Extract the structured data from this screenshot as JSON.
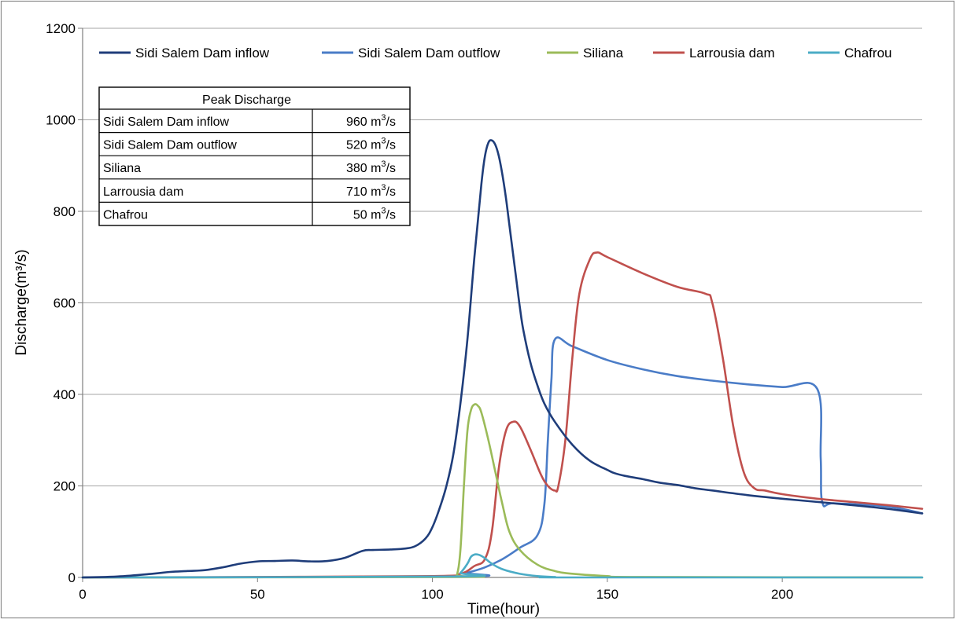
{
  "chart_data": {
    "type": "line",
    "xlabel": "Time(hour)",
    "ylabel": "Discharge(m³/s)",
    "xlim": [
      0,
      240
    ],
    "ylim": [
      0,
      1200
    ],
    "xticks": [
      0,
      50,
      100,
      150,
      200
    ],
    "yticks": [
      0,
      200,
      400,
      600,
      800,
      1000,
      1200
    ],
    "grid": "horizontal",
    "legend_position": "top",
    "series": [
      {
        "name": "Sidi Salem Dam inflow",
        "color": "#1f3d7a",
        "x": [
          0,
          10,
          20,
          25,
          30,
          35,
          40,
          45,
          50,
          55,
          60,
          65,
          70,
          75,
          80,
          83,
          88,
          92,
          95,
          98,
          100,
          102,
          104,
          106,
          108,
          110,
          112,
          114,
          115,
          116,
          117,
          118,
          119,
          120,
          121,
          122,
          123,
          124,
          125,
          126,
          128,
          130,
          132,
          135,
          140,
          145,
          150,
          152,
          155,
          160,
          165,
          170,
          175,
          180,
          190,
          200,
          210,
          220,
          230,
          240
        ],
        "y": [
          0,
          2,
          8,
          12,
          14,
          16,
          22,
          30,
          35,
          36,
          37,
          35,
          36,
          43,
          58,
          60,
          61,
          63,
          68,
          85,
          110,
          150,
          200,
          270,
          380,
          520,
          700,
          860,
          920,
          950,
          955,
          945,
          920,
          880,
          830,
          770,
          710,
          650,
          590,
          540,
          470,
          420,
          380,
          340,
          290,
          255,
          235,
          228,
          222,
          215,
          207,
          202,
          195,
          190,
          180,
          172,
          165,
          158,
          150,
          140
        ]
      },
      {
        "name": "Sidi Salem Dam outflow",
        "color": "#4a7cc7",
        "x": [
          0,
          107,
          110,
          115,
          120,
          125,
          130,
          132,
          133,
          134,
          135,
          140,
          150,
          160,
          170,
          180,
          190,
          200,
          210,
          211,
          211.5,
          215,
          230,
          240
        ],
        "y": [
          0,
          2,
          10,
          22,
          40,
          65,
          92,
          160,
          300,
          430,
          520,
          505,
          475,
          455,
          440,
          430,
          422,
          416,
          412,
          260,
          163,
          162,
          155,
          140
        ]
      },
      {
        "name": "Siliana",
        "color": "#9bbb59",
        "x": [
          0,
          106,
          107,
          108,
          109,
          110,
          111,
          112,
          113,
          114,
          116,
          118,
          120,
          122,
          125,
          130,
          135,
          140,
          150,
          160,
          240
        ],
        "y": [
          0,
          1,
          5,
          60,
          200,
          320,
          365,
          378,
          375,
          360,
          300,
          230,
          160,
          100,
          60,
          28,
          14,
          8,
          3,
          1,
          0
        ]
      },
      {
        "name": "Larrousia dam",
        "color": "#c0504d",
        "x": [
          0,
          50,
          100,
          108,
          112,
          115,
          117,
          119,
          121,
          123,
          125,
          128,
          131,
          133,
          135,
          136,
          138,
          140,
          142,
          145,
          147,
          150,
          160,
          170,
          178,
          180,
          183,
          186,
          189,
          192,
          195,
          200,
          210,
          220,
          230,
          240
        ],
        "y": [
          0,
          1,
          3,
          8,
          25,
          40,
          100,
          240,
          320,
          340,
          330,
          280,
          225,
          200,
          190,
          200,
          300,
          480,
          620,
          695,
          710,
          700,
          665,
          635,
          620,
          600,
          480,
          330,
          230,
          195,
          190,
          182,
          172,
          165,
          158,
          150
        ]
      },
      {
        "name": "Chafrou",
        "color": "#4bacc6",
        "x": [
          0,
          106,
          108,
          110,
          111,
          112,
          113,
          114,
          115,
          117,
          120,
          125,
          130,
          135,
          140,
          240
        ],
        "y": [
          0,
          2,
          10,
          30,
          45,
          50,
          50,
          47,
          42,
          30,
          18,
          8,
          3,
          1,
          0,
          0
        ]
      }
    ]
  },
  "legend": {
    "items": [
      {
        "label": "Sidi Salem Dam inflow"
      },
      {
        "label": "Sidi Salem Dam outflow"
      },
      {
        "label": "Siliana"
      },
      {
        "label": "Larrousia dam"
      },
      {
        "label": "Chafrou"
      }
    ]
  },
  "peak_table": {
    "header": "Peak Discharge",
    "rows": [
      {
        "name": "Sidi Salem Dam inflow",
        "value": "960"
      },
      {
        "name": "Sidi Salem Dam outflow",
        "value": "520"
      },
      {
        "name": "Siliana",
        "value": "380"
      },
      {
        "name": "Larrousia dam",
        "value": "710"
      },
      {
        "name": "Chafrou",
        "value": "50"
      }
    ],
    "unit_base": "m",
    "unit_exp": "3",
    "unit_tail": "/s"
  }
}
